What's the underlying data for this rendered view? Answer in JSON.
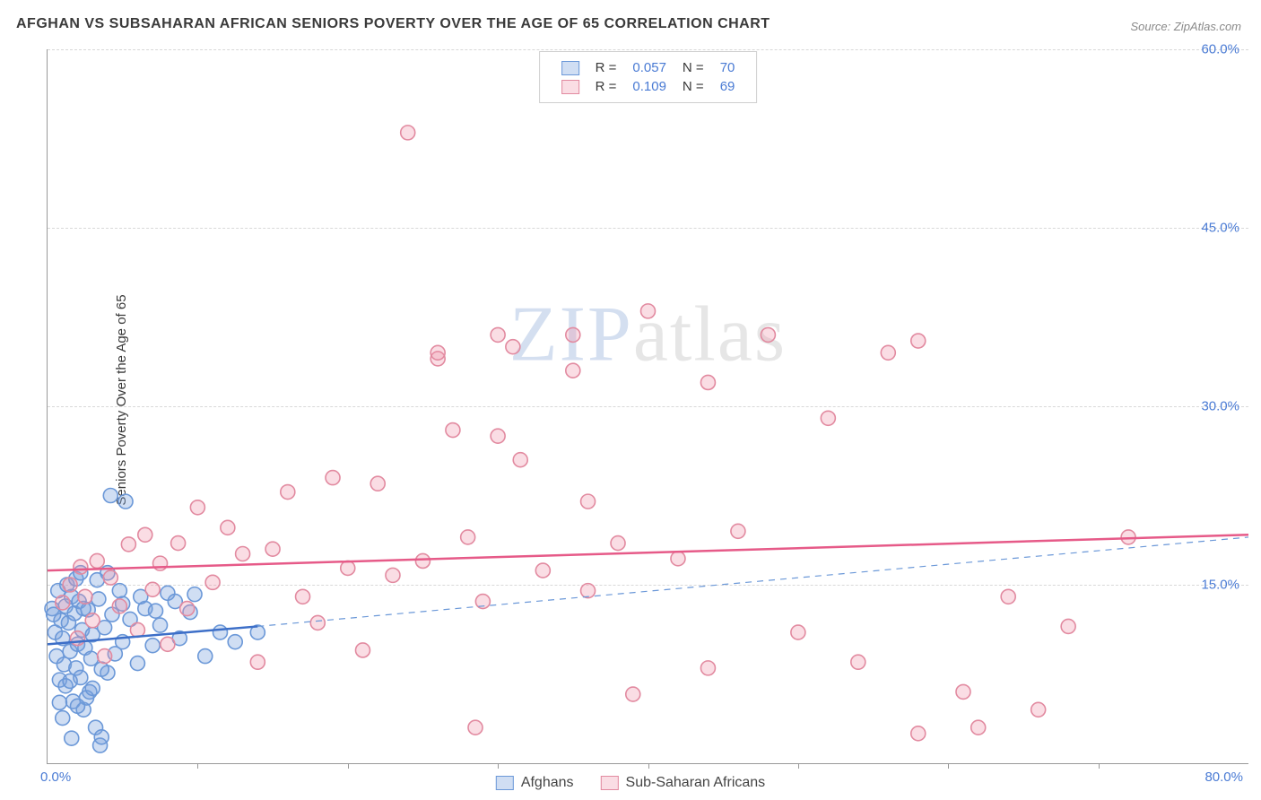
{
  "title": "AFGHAN VS SUBSAHARAN AFRICAN SENIORS POVERTY OVER THE AGE OF 65 CORRELATION CHART",
  "source": "Source: ZipAtlas.com",
  "ylabel": "Seniors Poverty Over the Age of 65",
  "watermark_a": "ZIP",
  "watermark_b": "atlas",
  "chart": {
    "type": "scatter",
    "xlim": [
      0,
      80
    ],
    "ylim": [
      0,
      60
    ],
    "xtick_step": 10,
    "yticks": [
      15,
      30,
      45,
      60
    ],
    "ytick_labels": [
      "15.0%",
      "30.0%",
      "45.0%",
      "60.0%"
    ],
    "x_origin_label": "0.0%",
    "x_max_label": "80.0%",
    "background_color": "#ffffff",
    "grid_color": "#d8d8d8",
    "axis_color": "#999999",
    "tick_label_color": "#4a7bd4",
    "marker_radius": 8,
    "marker_stroke_width": 1.6,
    "series": [
      {
        "name": "Afghans",
        "fill": "rgba(120,160,220,0.35)",
        "stroke": "#6b98d8",
        "r_value": "0.057",
        "n_value": "70",
        "trend_solid": {
          "x1": 0,
          "y1": 10,
          "x2": 14,
          "y2": 11.5,
          "width": 2.5,
          "color": "#3d6fc8"
        },
        "trend_dashed": {
          "x1": 14,
          "y1": 11.5,
          "x2": 80,
          "y2": 19,
          "width": 1.2,
          "color": "#6b98d8",
          "dash": "7,6"
        },
        "points": [
          [
            0.3,
            13
          ],
          [
            0.5,
            11
          ],
          [
            0.6,
            9
          ],
          [
            0.7,
            14.5
          ],
          [
            0.8,
            7
          ],
          [
            0.9,
            12
          ],
          [
            1.0,
            10.5
          ],
          [
            1.1,
            8.3
          ],
          [
            1.2,
            13.2
          ],
          [
            1.2,
            6.5
          ],
          [
            1.4,
            11.8
          ],
          [
            1.5,
            9.4
          ],
          [
            1.6,
            14
          ],
          [
            1.7,
            5.2
          ],
          [
            1.8,
            12.6
          ],
          [
            1.9,
            8
          ],
          [
            2.0,
            10
          ],
          [
            2.1,
            13.6
          ],
          [
            2.2,
            7.2
          ],
          [
            2.3,
            11.2
          ],
          [
            2.4,
            4.5
          ],
          [
            2.5,
            9.7
          ],
          [
            2.7,
            12.9
          ],
          [
            2.8,
            6
          ],
          [
            2.9,
            8.8
          ],
          [
            3.0,
            10.8
          ],
          [
            3.2,
            3
          ],
          [
            3.4,
            13.8
          ],
          [
            3.5,
            1.5
          ],
          [
            3.8,
            11.4
          ],
          [
            4.0,
            7.6
          ],
          [
            4.2,
            22.5
          ],
          [
            5.2,
            22
          ],
          [
            4.5,
            9.2
          ],
          [
            4.8,
            14.5
          ],
          [
            5.0,
            10.2
          ],
          [
            5.5,
            12.1
          ],
          [
            6.0,
            8.4
          ],
          [
            6.5,
            13
          ],
          [
            7.0,
            9.9
          ],
          [
            7.5,
            11.6
          ],
          [
            8.0,
            14.3
          ],
          [
            8.8,
            10.5
          ],
          [
            9.5,
            12.7
          ],
          [
            10.5,
            9
          ],
          [
            11.5,
            11
          ],
          [
            12.5,
            10.2
          ],
          [
            14,
            11
          ],
          [
            3.6,
            2.2
          ],
          [
            2.6,
            5.5
          ],
          [
            1.3,
            15
          ],
          [
            0.4,
            12.5
          ],
          [
            1.0,
            3.8
          ],
          [
            1.6,
            2.1
          ],
          [
            2.0,
            4.8
          ],
          [
            2.4,
            13
          ],
          [
            3.0,
            6.3
          ],
          [
            3.6,
            7.9
          ],
          [
            4.3,
            12.5
          ],
          [
            5.0,
            13.4
          ],
          [
            6.2,
            14
          ],
          [
            7.2,
            12.8
          ],
          [
            8.5,
            13.6
          ],
          [
            9.8,
            14.2
          ],
          [
            1.5,
            6.9
          ],
          [
            0.8,
            5.1
          ],
          [
            1.9,
            15.5
          ],
          [
            2.2,
            16
          ],
          [
            3.3,
            15.4
          ],
          [
            4.0,
            16
          ]
        ]
      },
      {
        "name": "Sub-Saharan Africans",
        "fill": "rgba(240,150,170,0.32)",
        "stroke": "#e28aa0",
        "r_value": "0.109",
        "n_value": "69",
        "trend_solid": {
          "x1": 0,
          "y1": 16.2,
          "x2": 80,
          "y2": 19.2,
          "width": 2.5,
          "color": "#e65a88"
        },
        "trend_dashed": null,
        "points": [
          [
            1,
            13.5
          ],
          [
            1.5,
            15
          ],
          [
            2,
            10.5
          ],
          [
            2.2,
            16.5
          ],
          [
            2.5,
            14
          ],
          [
            3,
            12
          ],
          [
            3.3,
            17
          ],
          [
            3.8,
            9
          ],
          [
            4.2,
            15.6
          ],
          [
            4.8,
            13.2
          ],
          [
            5.4,
            18.4
          ],
          [
            6,
            11.2
          ],
          [
            6.5,
            19.2
          ],
          [
            7,
            14.6
          ],
          [
            7.5,
            16.8
          ],
          [
            8,
            10
          ],
          [
            8.7,
            18.5
          ],
          [
            9.3,
            13
          ],
          [
            10,
            21.5
          ],
          [
            11,
            15.2
          ],
          [
            12,
            19.8
          ],
          [
            13,
            17.6
          ],
          [
            14,
            8.5
          ],
          [
            15,
            18
          ],
          [
            16,
            22.8
          ],
          [
            17,
            14
          ],
          [
            18,
            11.8
          ],
          [
            19,
            24
          ],
          [
            20,
            16.4
          ],
          [
            21,
            9.5
          ],
          [
            22,
            23.5
          ],
          [
            23,
            15.8
          ],
          [
            24,
            53
          ],
          [
            25,
            17
          ],
          [
            26,
            34
          ],
          [
            27,
            28
          ],
          [
            28,
            19
          ],
          [
            29,
            13.6
          ],
          [
            28.5,
            3
          ],
          [
            30,
            27.5
          ],
          [
            31,
            35
          ],
          [
            31.5,
            25.5
          ],
          [
            33,
            16.2
          ],
          [
            35,
            36
          ],
          [
            36,
            22
          ],
          [
            38,
            18.5
          ],
          [
            35,
            33
          ],
          [
            36,
            14.5
          ],
          [
            39,
            5.8
          ],
          [
            40,
            38
          ],
          [
            42,
            17.2
          ],
          [
            44,
            32
          ],
          [
            46,
            19.5
          ],
          [
            48,
            36
          ],
          [
            50,
            11
          ],
          [
            52,
            29
          ],
          [
            56,
            34.5
          ],
          [
            58,
            2.5
          ],
          [
            61,
            6
          ],
          [
            62,
            3
          ],
          [
            64,
            14
          ],
          [
            66,
            4.5
          ],
          [
            68,
            11.5
          ],
          [
            72,
            19
          ],
          [
            54,
            8.5
          ],
          [
            58,
            35.5
          ],
          [
            44,
            8
          ],
          [
            30,
            36
          ],
          [
            26,
            34.5
          ]
        ]
      }
    ]
  },
  "legend_labels": {
    "r": "R =",
    "n": "N ="
  },
  "text_color": "#3a3a3a",
  "value_link_color": "#4a7bd4"
}
